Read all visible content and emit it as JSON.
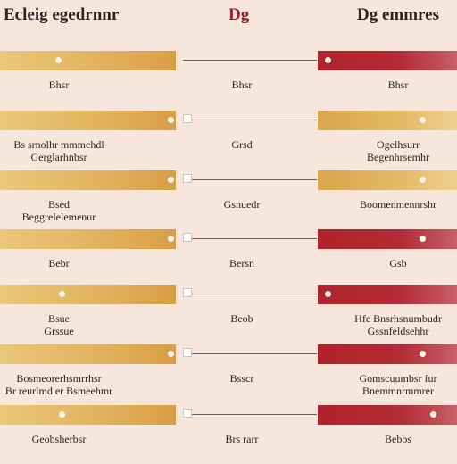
{
  "header": {
    "left_title": "Ecleig egedrnnr",
    "mid_title": "Dg",
    "right_title": "Dg emmres"
  },
  "rows": [
    {
      "left": "Bhsr",
      "mid": "Bhsr",
      "right": "Bhsr",
      "right_color": "red"
    },
    {
      "left": "Bs srnolhr mmmehdl\nGerglarhnbsr",
      "mid": "Grsd",
      "right": "Ogelhsurr\nBegenhrsemhr",
      "right_color": "gold"
    },
    {
      "left": "Bsed\nBeggrelelemenur",
      "mid": "Gsnuedr",
      "right": "Boomenmennrshr",
      "right_color": "gold"
    },
    {
      "left": "Bebr",
      "mid": "Bersn",
      "right": "Gsb",
      "right_color": "red"
    },
    {
      "left": "Bsue\nGrssue",
      "mid": "Beob",
      "right": "Hfe Bnsrhsnumbudr\nGssnfeldsehhr",
      "right_color": "red"
    },
    {
      "left": "Bosmeorerhsmrrhsr\nBr reurlmd er Bsmeehmr",
      "mid": "Bsscr",
      "right": "Gomscuumbsr fur\nBnemmnrmmrer",
      "right_color": "red"
    },
    {
      "left": "Geobsherbsr",
      "mid": "Brs rarr",
      "right": "Bebbs",
      "right_color": "red"
    }
  ],
  "colors": {
    "background": "#f6e6dc",
    "gold": "#e0ad57",
    "red": "#b0222c",
    "header_accent": "#9e1f2c"
  }
}
